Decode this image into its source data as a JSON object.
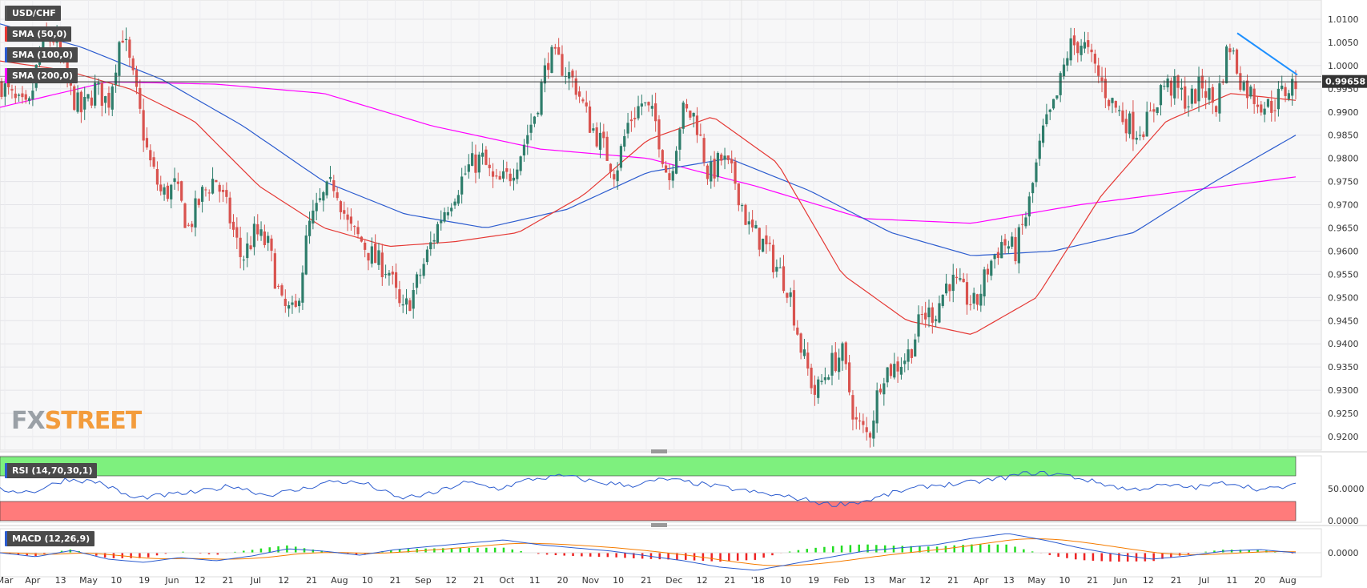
{
  "chart_data": {
    "type": "candlestick",
    "symbol": "USD/CHF",
    "indicators": {
      "sma50": "SMA (50,0)",
      "sma100": "SMA (100,0)",
      "sma200": "SMA (200,0)",
      "rsi": "RSI (14,70,30,1)",
      "macd": "MACD (12,26,9)"
    },
    "price_axis": {
      "ylim": [
        0.916,
        1.013
      ],
      "ticks": [
        "1.0100",
        "1.0050",
        "1.0000",
        "0.9950",
        "0.9900",
        "0.9850",
        "0.9800",
        "0.9750",
        "0.9700",
        "0.9650",
        "0.9600",
        "0.9550",
        "0.9500",
        "0.9450",
        "0.9400",
        "0.9350",
        "0.9300",
        "0.9250",
        "0.9200"
      ],
      "current_price_label": "0.99658",
      "current_price": 0.99658,
      "horizontal_level": 0.9965
    },
    "rsi_axis": {
      "ticks": [
        "50.0000",
        "0.0000"
      ],
      "overbought": 70,
      "oversold": 30
    },
    "macd_axis": {
      "ticks": [
        "0.0000"
      ]
    },
    "x_labels": [
      "Mar",
      "Apr",
      "13",
      "May",
      "10",
      "19",
      "Jun",
      "12",
      "21",
      "Jul",
      "12",
      "21",
      "Aug",
      "10",
      "21",
      "Sep",
      "12",
      "21",
      "Oct",
      "11",
      "20",
      "Nov",
      "10",
      "21",
      "Dec",
      "12",
      "21",
      "'18",
      "10",
      "19",
      "Feb",
      "13",
      "Mar",
      "12",
      "21",
      "Apr",
      "13",
      "May",
      "10",
      "21",
      "Jun",
      "12",
      "21",
      "Jul",
      "11",
      "20",
      "Aug"
    ],
    "price_keypoints": [
      0.996,
      0.992,
      0.99,
      1.005,
      1.006,
      0.995,
      0.99,
      0.995,
      0.992,
      1.008,
      0.995,
      0.98,
      0.972,
      0.974,
      0.965,
      0.972,
      0.976,
      0.968,
      0.958,
      0.964,
      0.961,
      0.948,
      0.946,
      0.965,
      0.971,
      0.975,
      0.965,
      0.962,
      0.958,
      0.956,
      0.946,
      0.952,
      0.96,
      0.968,
      0.973,
      0.978,
      0.98,
      0.974,
      0.976,
      0.982,
      0.99,
      1.002,
      1.0,
      0.996,
      0.988,
      0.983,
      0.977,
      0.988,
      0.992,
      0.988,
      0.975,
      0.99,
      0.989,
      0.976,
      0.98,
      0.975,
      0.965,
      0.962,
      0.957,
      0.952,
      0.938,
      0.929,
      0.935,
      0.938,
      0.923,
      0.92,
      0.934,
      0.935,
      0.938,
      0.946,
      0.947,
      0.954,
      0.951,
      0.948,
      0.957,
      0.962,
      0.96,
      0.97,
      0.985,
      0.992,
      1.004,
      1.005,
      0.999,
      0.993,
      0.989,
      0.986,
      0.988,
      0.996,
      0.995,
      0.992,
      0.996,
      0.991,
      1.005,
      0.996,
      0.993,
      0.991,
      0.994,
      0.9965
    ],
    "sma50_keypoints": [
      1.001,
      0.999,
      0.995,
      0.988,
      0.974,
      0.965,
      0.961,
      0.962,
      0.964,
      0.972,
      0.984,
      0.989,
      0.979,
      0.955,
      0.945,
      0.942,
      0.95,
      0.972,
      0.988,
      0.994,
      0.9925
    ],
    "sma100_keypoints": [
      1.009,
      1.004,
      0.997,
      0.987,
      0.975,
      0.968,
      0.965,
      0.969,
      0.977,
      0.98,
      0.973,
      0.964,
      0.959,
      0.96,
      0.964,
      0.975,
      0.985
    ],
    "sma200_keypoints": [
      0.991,
      0.9965,
      0.996,
      0.994,
      0.987,
      0.982,
      0.98,
      0.974,
      0.967,
      0.966,
      0.97,
      0.973,
      0.976
    ],
    "trendline": {
      "from": 1.007,
      "to": 0.998,
      "color": "#1e90ff"
    },
    "colors": {
      "up": "#2e7d6b",
      "down": "#d9534f",
      "sma50": "#e53935",
      "sma100": "#2c5ccf",
      "sma200": "#ff00ff",
      "rsi_line": "#2c5ccf",
      "rsi_overbought": "#7ef07e",
      "rsi_oversold": "#ff7b7b",
      "macd_line": "#2c5ccf",
      "macd_signal": "#f57c00",
      "hist_pos": "#22dd22",
      "hist_neg": "#ee2222"
    }
  },
  "watermark": {
    "part1": "FX",
    "part2": "STREET"
  }
}
